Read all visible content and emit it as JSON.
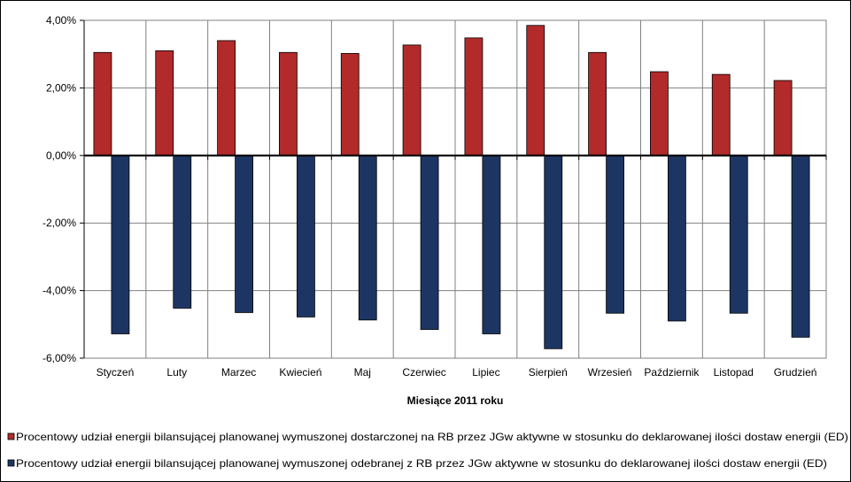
{
  "chart_data": {
    "type": "bar",
    "xlabel": "Miesiące 2011  roku",
    "ylim": [
      -6,
      4
    ],
    "yticks": [
      4,
      2,
      0,
      -2,
      -4,
      -6
    ],
    "ytick_labels": [
      "4,00%",
      "2,00%",
      "0,00%",
      "-2,00%",
      "-4,00%",
      "-6,00%"
    ],
    "categories": [
      "Styczeń",
      "Luty",
      "Marzec",
      "Kwiecień",
      "Maj",
      "Czerwiec",
      "Lipiec",
      "Sierpień",
      "Wrzesień",
      "Październik",
      "Listopad",
      "Grudzień"
    ],
    "grid": true,
    "legend_position": "bottom",
    "series": [
      {
        "name": "Procentowy udział energii bilansującej planowanej wymuszonej dostarczonej na RB przez JGw aktywne w stosunku do deklarowanej ilości dostaw energii (ED)",
        "color": "#b22a2a",
        "values": [
          3.05,
          3.1,
          3.4,
          3.05,
          3.02,
          3.27,
          3.48,
          3.85,
          3.05,
          2.48,
          2.4,
          2.22
        ]
      },
      {
        "name": "Procentowy udział energii bilansującej planowanej wymuszonej odebranej z RB przez JGw aktywne w stosunku do deklarowanej ilości dostaw energii (ED)",
        "color": "#1c3563",
        "values": [
          -5.28,
          -4.52,
          -4.65,
          -4.78,
          -4.87,
          -5.15,
          -5.28,
          -5.72,
          -4.67,
          -4.9,
          -4.67,
          -5.38
        ]
      }
    ]
  }
}
